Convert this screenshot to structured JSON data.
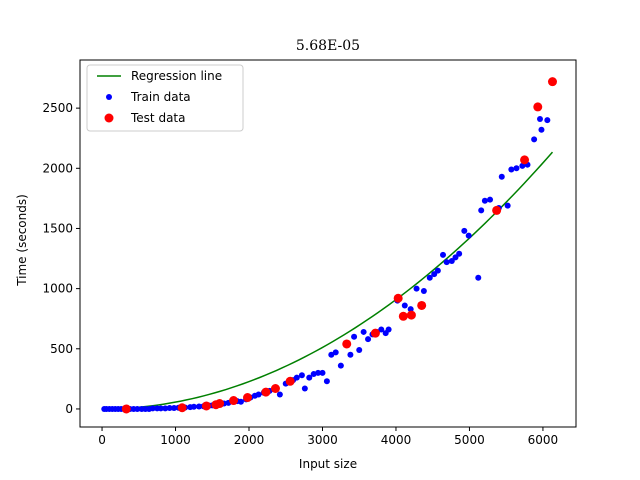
{
  "chart_data": {
    "type": "scatter",
    "title": "5.68E-05",
    "xlabel": "Input size",
    "ylabel": "Time (seconds)",
    "xlim": [
      -300,
      6450
    ],
    "ylim": [
      -150,
      2900
    ],
    "xticks": [
      0,
      1000,
      2000,
      3000,
      4000,
      5000,
      6000
    ],
    "yticks": [
      0,
      500,
      1000,
      1500,
      2000,
      2500
    ],
    "legend": "upper-left",
    "grid": false,
    "regression": {
      "name": "Regression line",
      "color": "#008000",
      "coef": 5.68e-05,
      "x_range": [
        0,
        6130
      ]
    },
    "series": [
      {
        "name": "Train data",
        "color": "#0000ff",
        "marker_size": "small",
        "points": [
          [
            30,
            0
          ],
          [
            60,
            0
          ],
          [
            100,
            0
          ],
          [
            140,
            0
          ],
          [
            180,
            0
          ],
          [
            220,
            0
          ],
          [
            260,
            0
          ],
          [
            300,
            0
          ],
          [
            380,
            0
          ],
          [
            430,
            0
          ],
          [
            480,
            0
          ],
          [
            540,
            0
          ],
          [
            590,
            0
          ],
          [
            640,
            0
          ],
          [
            690,
            5
          ],
          [
            750,
            5
          ],
          [
            800,
            5
          ],
          [
            860,
            5
          ],
          [
            920,
            8
          ],
          [
            980,
            8
          ],
          [
            1040,
            10
          ],
          [
            1130,
            12
          ],
          [
            1200,
            15
          ],
          [
            1250,
            18
          ],
          [
            1320,
            20
          ],
          [
            1380,
            22
          ],
          [
            1460,
            28
          ],
          [
            1500,
            30
          ],
          [
            1550,
            35
          ],
          [
            1600,
            40
          ],
          [
            1660,
            45
          ],
          [
            1720,
            50
          ],
          [
            1840,
            65
          ],
          [
            1890,
            60
          ],
          [
            1960,
            80
          ],
          [
            2020,
            95
          ],
          [
            2080,
            110
          ],
          [
            2130,
            120
          ],
          [
            2200,
            135
          ],
          [
            2280,
            150
          ],
          [
            2360,
            160
          ],
          [
            2420,
            120
          ],
          [
            2500,
            210
          ],
          [
            2600,
            240
          ],
          [
            2650,
            260
          ],
          [
            2720,
            280
          ],
          [
            2760,
            170
          ],
          [
            2820,
            260
          ],
          [
            2880,
            290
          ],
          [
            2940,
            300
          ],
          [
            3000,
            300
          ],
          [
            3060,
            230
          ],
          [
            3120,
            450
          ],
          [
            3180,
            470
          ],
          [
            3250,
            360
          ],
          [
            3330,
            540
          ],
          [
            3380,
            450
          ],
          [
            3430,
            600
          ],
          [
            3500,
            490
          ],
          [
            3560,
            640
          ],
          [
            3620,
            580
          ],
          [
            3680,
            620
          ],
          [
            3740,
            640
          ],
          [
            3800,
            660
          ],
          [
            3860,
            630
          ],
          [
            3900,
            660
          ],
          [
            4020,
            900
          ],
          [
            4120,
            860
          ],
          [
            4200,
            830
          ],
          [
            4280,
            1000
          ],
          [
            4380,
            980
          ],
          [
            4460,
            1090
          ],
          [
            4520,
            1120
          ],
          [
            4570,
            1150
          ],
          [
            4640,
            1280
          ],
          [
            4690,
            1220
          ],
          [
            4760,
            1230
          ],
          [
            4810,
            1260
          ],
          [
            4860,
            1290
          ],
          [
            4930,
            1480
          ],
          [
            4990,
            1440
          ],
          [
            5120,
            1090
          ],
          [
            5160,
            1650
          ],
          [
            5210,
            1730
          ],
          [
            5280,
            1740
          ],
          [
            5400,
            1670
          ],
          [
            5440,
            1930
          ],
          [
            5520,
            1690
          ],
          [
            5570,
            1990
          ],
          [
            5640,
            2000
          ],
          [
            5720,
            2020
          ],
          [
            5790,
            2030
          ],
          [
            5880,
            2240
          ],
          [
            5980,
            2320
          ],
          [
            6060,
            2400
          ],
          [
            5960,
            2410
          ]
        ]
      },
      {
        "name": "Test data",
        "color": "#ff0000",
        "marker_size": "large",
        "points": [
          [
            330,
            0
          ],
          [
            1090,
            10
          ],
          [
            1420,
            25
          ],
          [
            1550,
            35
          ],
          [
            1600,
            45
          ],
          [
            1790,
            70
          ],
          [
            1980,
            95
          ],
          [
            2230,
            140
          ],
          [
            2360,
            170
          ],
          [
            2560,
            230
          ],
          [
            3330,
            540
          ],
          [
            3720,
            630
          ],
          [
            4030,
            920
          ],
          [
            4100,
            770
          ],
          [
            4210,
            780
          ],
          [
            4350,
            860
          ],
          [
            5370,
            1650
          ],
          [
            5750,
            2070
          ],
          [
            5930,
            2510
          ],
          [
            6130,
            2720
          ]
        ]
      }
    ]
  }
}
